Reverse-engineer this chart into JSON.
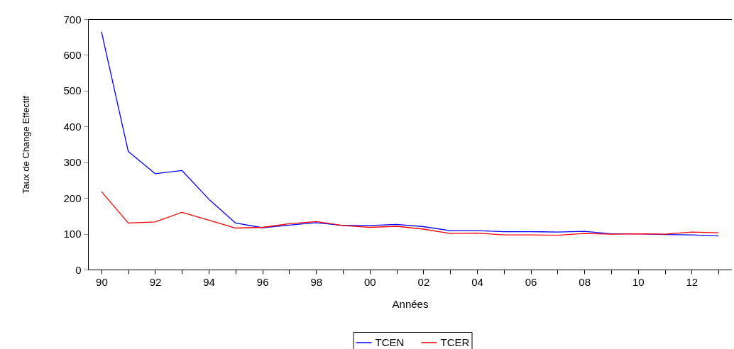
{
  "chart_data": {
    "type": "line",
    "xlabel": "Années",
    "ylabel": "Taux de Change Effectif",
    "categories": [
      "90",
      null,
      "92",
      null,
      "94",
      null,
      "96",
      null,
      "98",
      null,
      "00",
      null,
      "02",
      null,
      "04",
      null,
      "06",
      null,
      "08",
      null,
      "10",
      null,
      "12",
      null
    ],
    "series": [
      {
        "name": "TCEN",
        "color": "#0000ff",
        "values": [
          665,
          330,
          268,
          277,
          197,
          130,
          117,
          124,
          131,
          123,
          123,
          126,
          120,
          109,
          109,
          106,
          106,
          105,
          107,
          100,
          100,
          98,
          97,
          94
        ]
      },
      {
        "name": "TCER",
        "color": "#ff0000",
        "values": [
          218,
          130,
          133,
          160,
          138,
          116,
          118,
          128,
          134,
          123,
          118,
          121,
          113,
          101,
          102,
          97,
          97,
          96,
          101,
          99,
          100,
          99,
          105,
          103
        ]
      }
    ],
    "ylim": [
      0,
      700
    ],
    "yticks": [
      0,
      100,
      200,
      300,
      400,
      500,
      600,
      700
    ],
    "grid": false,
    "legend": "bottom",
    "marker": "none",
    "line_style": "solid"
  }
}
